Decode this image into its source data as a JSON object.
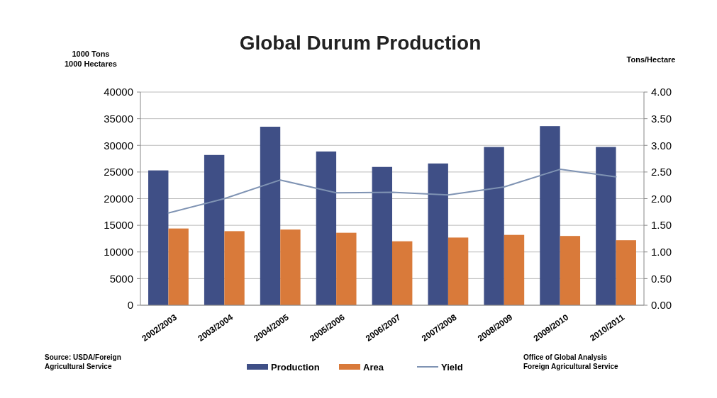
{
  "chart_data": {
    "type": "bar",
    "title": "Global Durum Production",
    "ylabel": "1000 Tons\n1000 Hectares",
    "y2label": "Tons/Hectare",
    "categories": [
      "2002/2003",
      "2003/2004",
      "2004/2005",
      "2005/2006",
      "2006/2007",
      "2007/2008",
      "2008/2009",
      "2009/2010",
      "2010/2011"
    ],
    "series": [
      {
        "name": "Production",
        "color": "#3f4f86",
        "values": [
          25300,
          28200,
          33500,
          28850,
          25950,
          26600,
          29700,
          33600,
          29700
        ]
      },
      {
        "name": "Area",
        "color": "#d97a3a",
        "values": [
          14400,
          13900,
          14200,
          13600,
          12000,
          12700,
          13200,
          13000,
          12200
        ]
      },
      {
        "name": "Yield",
        "type": "line",
        "axis": "y2",
        "color": "#7f93b3",
        "values": [
          1.73,
          2.0,
          2.35,
          2.11,
          2.12,
          2.07,
          2.22,
          2.55,
          2.41
        ]
      }
    ],
    "ylim": [
      0,
      40000
    ],
    "yticks": [
      0,
      5000,
      10000,
      15000,
      20000,
      25000,
      30000,
      35000,
      40000
    ],
    "y2lim": [
      0,
      4
    ],
    "y2ticks": [
      {
        "value": 0,
        "label": "0.00"
      },
      {
        "value": 0.5,
        "label": "0.50"
      },
      {
        "value": 1,
        "label": "1.00"
      },
      {
        "value": 1.5,
        "label": "1.50"
      },
      {
        "value": 2,
        "label": "2.00"
      },
      {
        "value": 2.5,
        "label": "2.50"
      },
      {
        "value": 3,
        "label": "3.00"
      },
      {
        "value": 3.5,
        "label": "3.50"
      },
      {
        "value": 4,
        "label": "4.00"
      }
    ],
    "grid": "y",
    "legend": "bottom",
    "annotations": [
      "Source: USDA/Foreign\nAgricultural Service",
      "Office of Global Analysis\nForeign Agricultural Service"
    ]
  }
}
